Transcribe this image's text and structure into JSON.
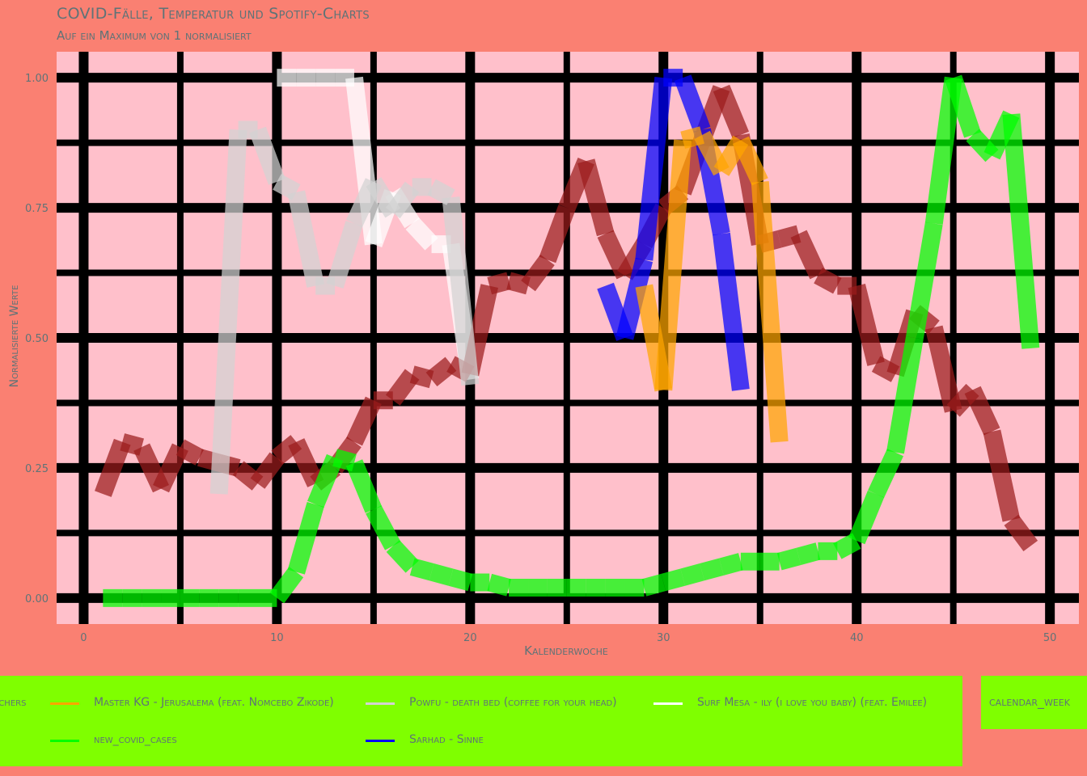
{
  "title": "COVID-Fälle, Temperatur und Spotify-Charts",
  "subtitle": "Auf ein Maximum von 1 normalisiert",
  "legend": {
    "items": [
      {
        "label": "echers",
        "color": "#FFFF00"
      },
      {
        "label": "Master KG - Jerusalema (feat. Nomcebo Zikode)",
        "color": "#FFA500"
      },
      {
        "label": "Powfu - death bed (coffee for your head)",
        "color": "#D3D3D3"
      },
      {
        "label": "Surf Mesa - ily (i love you baby) (feat. Emilee)",
        "color": "#FFFFFF"
      },
      {
        "label": "new_covid_cases",
        "color": "#00FF00"
      },
      {
        "label": "Sarhad - Sinne",
        "color": "#0000FF"
      }
    ],
    "second_label": "calendar_week"
  },
  "chart_data": {
    "type": "line",
    "title": "COVID-Fälle, Temperatur und Spotify-Charts",
    "subtitle": "Auf ein Maximum von 1 normalisiert",
    "xlabel": "Kalenderwoche",
    "ylabel": "Normalisierte Werte",
    "xlim": [
      -1.4,
      51.5
    ],
    "ylim": [
      -0.05,
      1.05
    ],
    "x_ticks": [
      0,
      10,
      20,
      30,
      40,
      50
    ],
    "x_tick_labels": [
      "0",
      "10",
      "20",
      "30",
      "40",
      "50"
    ],
    "y_ticks": [
      0,
      0.25,
      0.5,
      0.75,
      1.0
    ],
    "y_tick_labels": [
      "0.00",
      "0.25",
      "0.50",
      "0.75",
      "1.00"
    ],
    "grid": true,
    "background": "#FFC0CB",
    "series": [
      {
        "name": "new_covid_cases",
        "color": "#00FF00",
        "x": [
          1,
          2,
          3,
          4,
          5,
          6,
          7,
          8,
          9,
          10,
          11,
          12,
          13,
          14,
          15,
          16,
          17,
          18,
          19,
          20,
          21,
          22,
          23,
          24,
          25,
          26,
          27,
          28,
          29,
          30,
          31,
          32,
          33,
          34,
          35,
          36,
          37,
          38,
          39,
          40,
          41,
          42,
          43,
          44,
          45,
          46,
          47,
          48,
          49
        ],
        "y": [
          0.0,
          0.0,
          0.0,
          0.0,
          0.0,
          0.0,
          0.0,
          0.0,
          0.0,
          0.0,
          0.05,
          0.18,
          0.27,
          0.26,
          0.17,
          0.1,
          0.06,
          0.05,
          0.04,
          0.03,
          0.03,
          0.02,
          0.02,
          0.02,
          0.02,
          0.02,
          0.02,
          0.02,
          0.02,
          0.03,
          0.04,
          0.05,
          0.06,
          0.07,
          0.07,
          0.07,
          0.08,
          0.09,
          0.09,
          0.11,
          0.2,
          0.28,
          0.5,
          0.72,
          1.0,
          0.89,
          0.85,
          0.93,
          0.48
        ]
      },
      {
        "name": "Powfu - death bed (coffee for your head)",
        "color": "#D3D3D3",
        "x": [
          7,
          8,
          9,
          10,
          11,
          12,
          13,
          14,
          15,
          16,
          17,
          18,
          19,
          20
        ],
        "y": [
          0.2,
          0.9,
          0.9,
          0.8,
          0.78,
          0.6,
          0.6,
          0.72,
          0.8,
          0.74,
          0.79,
          0.79,
          0.77,
          0.41
        ]
      },
      {
        "name": "Surf Mesa - ily (i love you baby) (feat. Emilee)",
        "color": "#FFFFFF",
        "x": [
          10,
          11,
          12,
          13,
          14,
          15,
          16,
          17,
          18,
          19,
          20
        ],
        "y": [
          1.0,
          1.0,
          1.0,
          1.0,
          1.0,
          0.68,
          0.78,
          0.72,
          0.68,
          0.68,
          0.42
        ]
      },
      {
        "name": "Sarhad - Sinne",
        "color": "#0000FF",
        "x": [
          27,
          28,
          29,
          30,
          31,
          32,
          33,
          34
        ],
        "y": [
          0.6,
          0.5,
          0.65,
          1.0,
          1.0,
          0.9,
          0.7,
          0.4
        ]
      },
      {
        "name": "Master KG - Jerusalema (feat. Nomcebo Zikode)",
        "color": "#FFA500",
        "x": [
          29,
          30,
          31,
          32,
          33,
          34,
          35,
          36
        ],
        "y": [
          0.6,
          0.4,
          0.88,
          0.89,
          0.82,
          0.88,
          0.8,
          0.3
        ]
      },
      {
        "name": "",
        "color": "#9B1C1C",
        "x": [
          1,
          2,
          3,
          4,
          5,
          6,
          7,
          8,
          9,
          10,
          11,
          12,
          13,
          14,
          15,
          16,
          17,
          18,
          19,
          20,
          21,
          22,
          23,
          24,
          25,
          26,
          27,
          28,
          29,
          30,
          31,
          32,
          33,
          34,
          35,
          36,
          37,
          38,
          39,
          40,
          41,
          42,
          43,
          44,
          45,
          46,
          47,
          48,
          49
        ],
        "y": [
          0.2,
          0.3,
          0.29,
          0.21,
          0.29,
          0.27,
          0.26,
          0.25,
          0.22,
          0.27,
          0.3,
          0.22,
          0.25,
          0.3,
          0.38,
          0.38,
          0.43,
          0.42,
          0.45,
          0.43,
          0.6,
          0.61,
          0.6,
          0.65,
          0.75,
          0.84,
          0.7,
          0.62,
          0.68,
          0.75,
          0.78,
          0.88,
          0.98,
          0.89,
          0.68,
          0.69,
          0.7,
          0.62,
          0.6,
          0.6,
          0.45,
          0.43,
          0.55,
          0.52,
          0.36,
          0.4,
          0.32,
          0.15,
          0.1
        ]
      }
    ]
  }
}
